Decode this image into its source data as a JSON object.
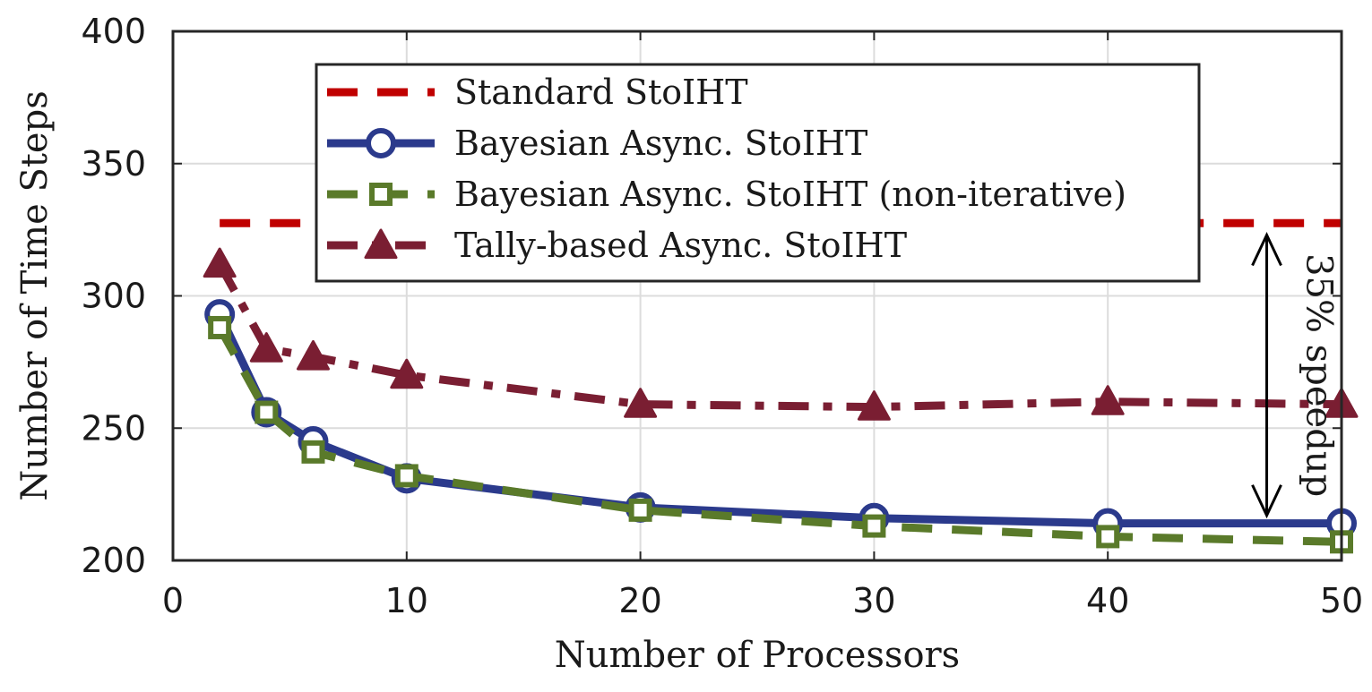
{
  "chart_data": {
    "type": "line",
    "title": "",
    "xlabel": "Number of Processors",
    "ylabel": "Number of Time Steps",
    "xlim": [
      0,
      50
    ],
    "ylim": [
      200,
      400
    ],
    "xticks": [
      0,
      10,
      20,
      30,
      40,
      50
    ],
    "yticks": [
      200,
      250,
      300,
      350,
      400
    ],
    "xtick_labels": [
      "0",
      "10",
      "20",
      "30",
      "40",
      "50"
    ],
    "ytick_labels": [
      "200",
      "250",
      "300",
      "350",
      "400"
    ],
    "grid": true,
    "legend_position": "top-center",
    "series": [
      {
        "name": "Standard StoIHT",
        "color": "#c00000",
        "line_style": "dashed",
        "marker": "none",
        "x": [
          2,
          50
        ],
        "y": [
          327.5,
          327.5
        ]
      },
      {
        "name": "Bayesian Async. StoIHT",
        "color": "#2b3a8c",
        "line_style": "solid",
        "marker": "circle",
        "x": [
          2,
          4,
          6,
          10,
          20,
          30,
          40,
          50
        ],
        "y": [
          293,
          256,
          245,
          231,
          220,
          216,
          214,
          214
        ]
      },
      {
        "name": "Bayesian Async. StoIHT (non-iterative)",
        "color": "#5a7a2a",
        "line_style": "dashed",
        "marker": "square",
        "x": [
          2,
          4,
          6,
          10,
          20,
          30,
          40,
          50
        ],
        "y": [
          288,
          256,
          241,
          232,
          219,
          213,
          209,
          207
        ]
      },
      {
        "name": "Tally-based Async. StoIHT",
        "color": "#7a1e32",
        "line_style": "dashdot",
        "marker": "triangle",
        "x": [
          2,
          4,
          6,
          10,
          20,
          30,
          40,
          50
        ],
        "y": [
          312,
          280,
          277,
          270,
          259,
          258,
          260,
          259
        ]
      }
    ],
    "annotation": {
      "text": "35% speedup",
      "x": 46.8,
      "y_top": 323,
      "y_bottom": 217
    }
  }
}
